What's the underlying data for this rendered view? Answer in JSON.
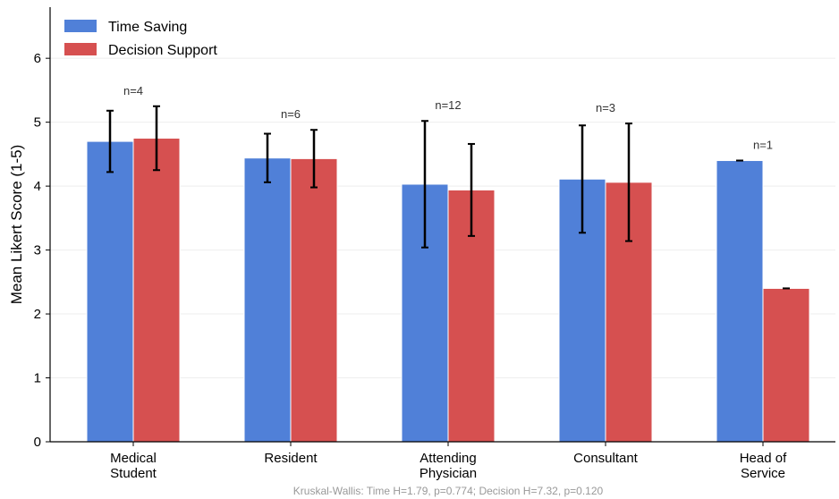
{
  "chart_data": {
    "type": "bar",
    "ylabel": "Mean Likert Score (1-5)",
    "xlabel": "",
    "ylim": [
      0,
      6.8
    ],
    "yticks": [
      "0",
      "1",
      "2",
      "3",
      "4",
      "5",
      "6"
    ],
    "categories": [
      [
        "Medical",
        "Student"
      ],
      [
        "Resident"
      ],
      [
        "Attending",
        "Physician"
      ],
      [
        "Consultant"
      ],
      [
        "Head of",
        "Service"
      ]
    ],
    "n_labels": [
      "n=4",
      "n=6",
      "n=12",
      "n=3",
      "n=1"
    ],
    "series": [
      {
        "name": "Time Saving",
        "color": "#5080d8",
        "values": [
          4.7,
          4.44,
          4.03,
          4.11,
          4.4
        ],
        "err": [
          0.48,
          0.38,
          0.99,
          0.84,
          0.0
        ]
      },
      {
        "name": "Decision Support",
        "color": "#d65050",
        "values": [
          4.75,
          4.43,
          3.94,
          4.06,
          2.4
        ],
        "err": [
          0.5,
          0.45,
          0.72,
          0.92,
          0.0
        ]
      }
    ],
    "legend_position": "top-left",
    "grid": "horizontal-light"
  },
  "footnote": "Kruskal-Wallis: Time H=1.79, p=0.774; Decision H=7.32, p=0.120"
}
